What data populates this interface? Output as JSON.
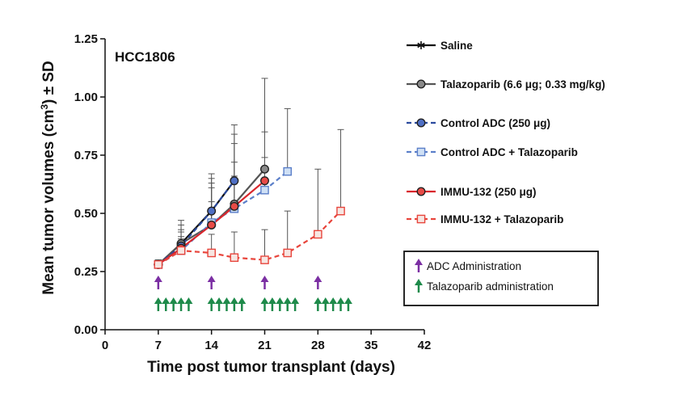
{
  "chart_data": {
    "type": "line",
    "title": "",
    "annotation_label": "HCC1806",
    "xlabel": "Time post tumor transplant (days)",
    "ylabel_parts": [
      "Mean tumor volumes (cm",
      "3",
      ") ± SD"
    ],
    "xlim": [
      0,
      42
    ],
    "ylim": [
      0,
      1.25
    ],
    "x_ticks": [
      0,
      7,
      14,
      21,
      28,
      35,
      42
    ],
    "y_ticks": [
      0.0,
      0.25,
      0.5,
      0.75,
      1.0,
      1.25
    ],
    "y_tick_labels": [
      "0.00",
      "0.25",
      "0.50",
      "0.75",
      "1.00",
      "1.25"
    ],
    "grid": false,
    "legend_position": "right",
    "series": [
      {
        "name": "Saline",
        "color": "#111111",
        "dash": "solid",
        "marker": "asterisk",
        "x": [
          7,
          10,
          14,
          17
        ],
        "y": [
          0.28,
          0.37,
          0.51,
          0.64
        ],
        "sd": [
          0.02,
          0.1,
          0.16,
          0.24
        ]
      },
      {
        "name": "Talazoparib (6.6 μg; 0.33 mg/kg)",
        "color": "#555555",
        "fill": "#8a8a8a",
        "dash": "solid",
        "marker": "circle",
        "x": [
          7,
          10,
          14,
          17,
          21
        ],
        "y": [
          0.28,
          0.37,
          0.45,
          0.54,
          0.69
        ],
        "sd": [
          0.02,
          0.08,
          0.2,
          0.3,
          0.39
        ]
      },
      {
        "name": "Control ADC (250 μg)",
        "color": "#2b4a9e",
        "fill": "#4f6fc4",
        "dash": "dashed",
        "marker": "circle",
        "x": [
          7,
          10,
          14,
          17
        ],
        "y": [
          0.28,
          0.36,
          0.51,
          0.64
        ],
        "sd": [
          0.02,
          0.07,
          0.12,
          0.16
        ]
      },
      {
        "name": "Control ADC + Talazoparib",
        "color": "#5b7fc9",
        "fill": "#cfe0f5",
        "dash": "dashed",
        "marker": "square",
        "x": [
          7,
          10,
          14,
          17,
          21,
          24
        ],
        "y": [
          0.28,
          0.34,
          0.46,
          0.52,
          0.6,
          0.68
        ],
        "sd": [
          0.02,
          0.06,
          0.15,
          0.2,
          0.25,
          0.27
        ]
      },
      {
        "name": "IMMU-132 (250 μg)",
        "color": "#d9262c",
        "fill": "#e84b47",
        "dash": "solid",
        "marker": "circle",
        "x": [
          7,
          10,
          14,
          17,
          21
        ],
        "y": [
          0.28,
          0.35,
          0.45,
          0.53,
          0.64
        ],
        "sd": [
          0.02,
          0.07,
          0.1,
          0.13,
          0.1
        ]
      },
      {
        "name": "IMMU-132 + Talazoparib",
        "color": "#e8453c",
        "fill": "#f6e6e2",
        "dash": "dashed",
        "marker": "square",
        "x": [
          7,
          10,
          14,
          17,
          21,
          24,
          28,
          31
        ],
        "y": [
          0.28,
          0.34,
          0.33,
          0.31,
          0.3,
          0.33,
          0.41,
          0.51
        ],
        "sd": [
          0.02,
          0.05,
          0.08,
          0.11,
          0.13,
          0.18,
          0.28,
          0.35
        ]
      }
    ],
    "dosing": {
      "adc_days": [
        7,
        14,
        21,
        28
      ],
      "adc_color": "#7b2fa3",
      "talazoparib_days": [
        7,
        8,
        9,
        10,
        11,
        14,
        15,
        16,
        17,
        18,
        21,
        22,
        23,
        24,
        25,
        28,
        29,
        30,
        31,
        32
      ],
      "talazoparib_color": "#1e8a4a",
      "legend": [
        {
          "label": "ADC Administration",
          "color": "#7b2fa3"
        },
        {
          "label": "Talazoparib administration",
          "color": "#1e8a4a"
        }
      ]
    }
  }
}
